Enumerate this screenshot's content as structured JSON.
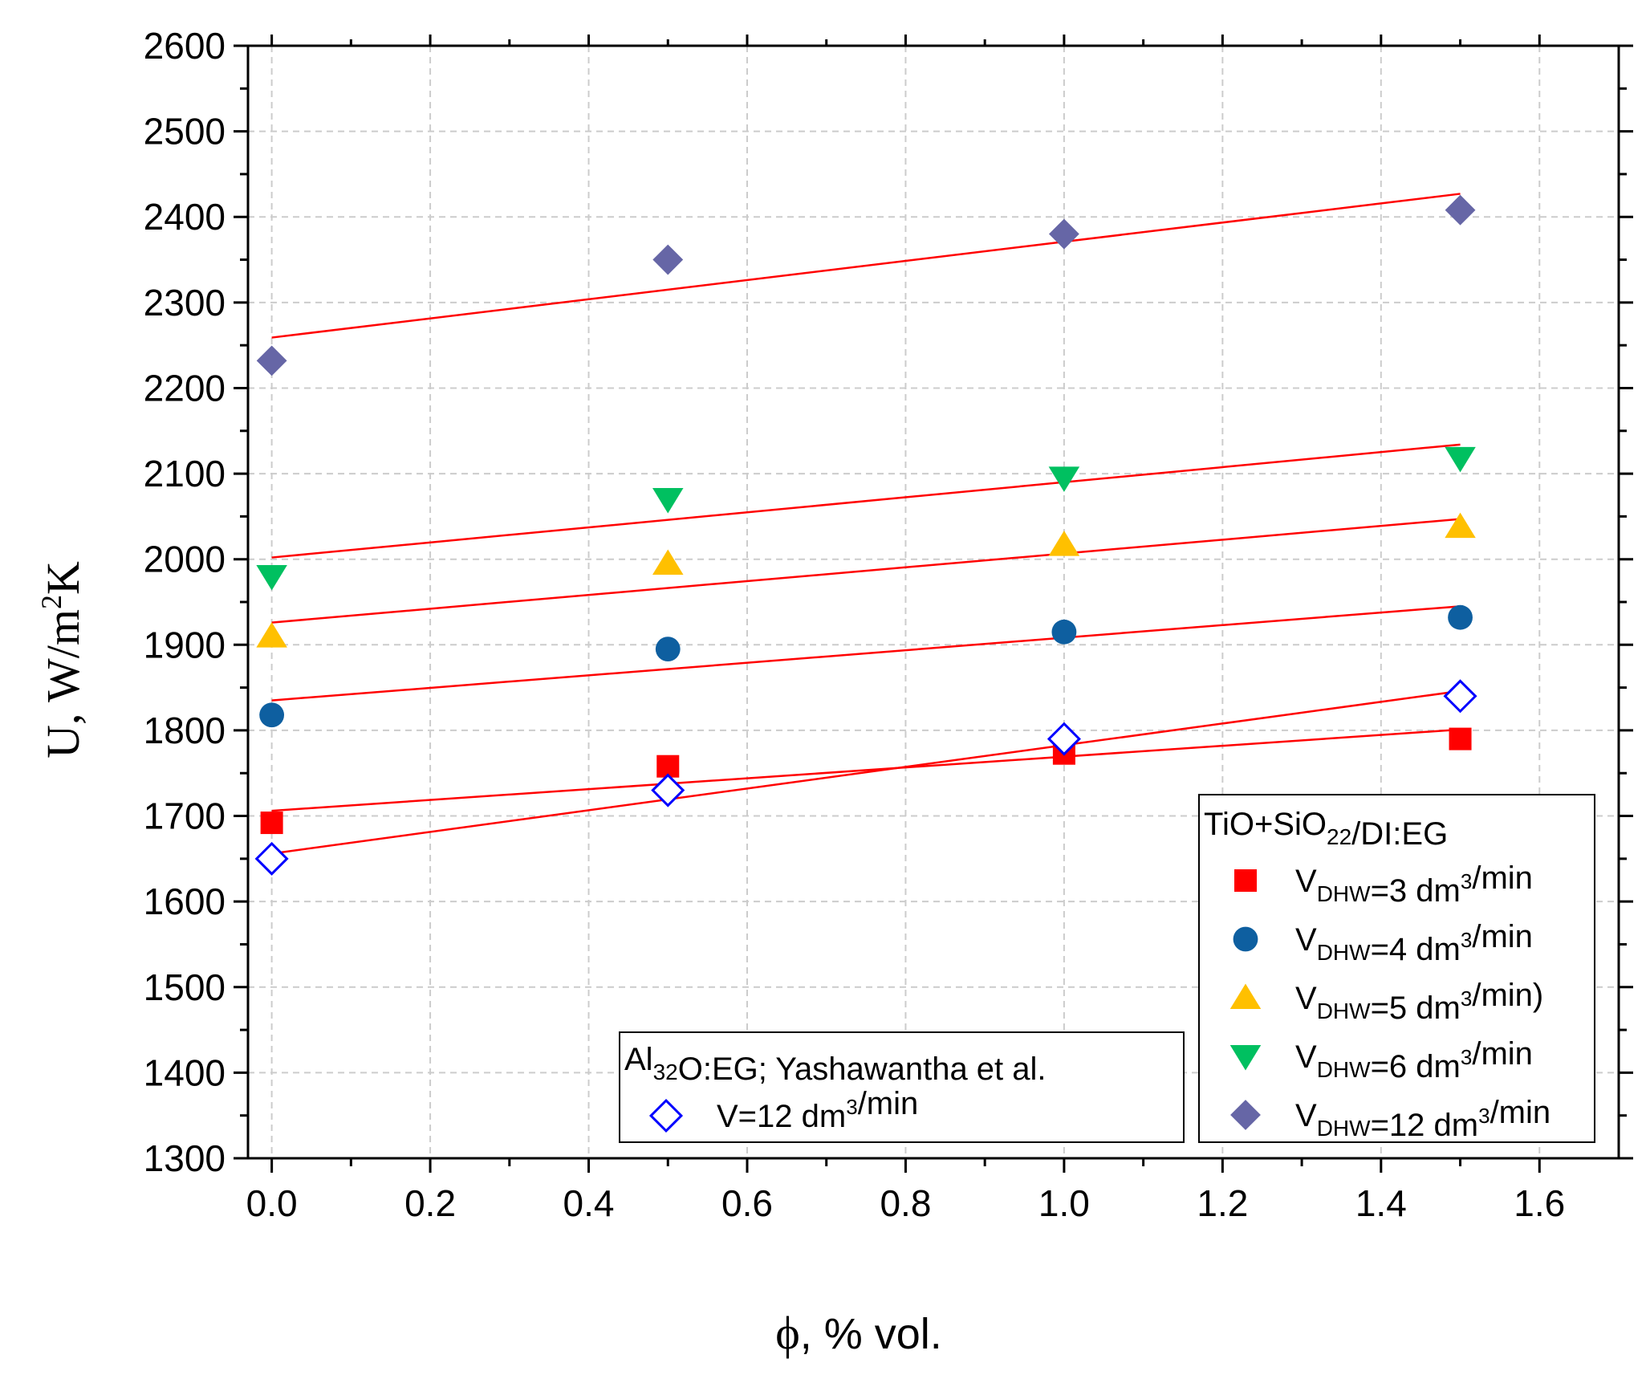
{
  "chart_data": {
    "type": "scatter",
    "xlabel_symbol": "ϕ",
    "xlabel_rest": ", % vol.",
    "ylabel": {
      "base": "U, W/m",
      "sup": "2",
      "tail": "K"
    },
    "xlim": [
      -0.03,
      1.7
    ],
    "ylim": [
      1300,
      2600
    ],
    "xticks": [
      0.0,
      0.2,
      0.4,
      0.6,
      0.8,
      1.0,
      1.2,
      1.4,
      1.6
    ],
    "xtick_labels": [
      "0.0",
      "0.2",
      "0.4",
      "0.6",
      "0.8",
      "1.0",
      "1.2",
      "1.4",
      "1.6"
    ],
    "yticks": [
      1300,
      1400,
      1500,
      1600,
      1700,
      1800,
      1900,
      2000,
      2100,
      2200,
      2300,
      2400,
      2500,
      2600
    ],
    "ytick_labels": [
      "1300",
      "1400",
      "1500",
      "1600",
      "1700",
      "1800",
      "1900",
      "2000",
      "2100",
      "2200",
      "2300",
      "2400",
      "2500",
      "2600"
    ],
    "grid": true,
    "fit_color": "#ff0000",
    "series": [
      {
        "label": "V_DHW=3 dm3/min",
        "marker": "square",
        "color": "#ff0000",
        "filled": true,
        "x": [
          0.0,
          0.5,
          1.0,
          1.5
        ],
        "y": [
          1692,
          1758,
          1773,
          1790
        ],
        "fit": [
          1706,
          1801
        ]
      },
      {
        "label": "V_DHW=4 dm3/min",
        "marker": "circle",
        "color": "#0e5fa0",
        "filled": true,
        "x": [
          0.0,
          0.5,
          1.0,
          1.5
        ],
        "y": [
          1818,
          1895,
          1915,
          1932
        ],
        "fit": [
          1835,
          1945
        ]
      },
      {
        "label": "V_DHW=5 dm3/min)",
        "marker": "triangle-up",
        "color": "#ffc000",
        "filled": true,
        "x": [
          0.0,
          0.5,
          1.0,
          1.5
        ],
        "y": [
          1910,
          1995,
          2017,
          2038
        ],
        "fit": [
          1926,
          2047
        ]
      },
      {
        "label": "V_DHW=6 dm3/min",
        "marker": "triangle-down",
        "color": "#00c060",
        "filled": true,
        "x": [
          0.0,
          0.5,
          1.0,
          1.5
        ],
        "y": [
          1980,
          2070,
          2095,
          2118
        ],
        "fit": [
          2002,
          2134
        ]
      },
      {
        "label": "V_DHW=12 dm3/min",
        "marker": "diamond",
        "color": "#6666a6",
        "filled": true,
        "x": [
          0.0,
          0.5,
          1.0,
          1.5
        ],
        "y": [
          2232,
          2350,
          2380,
          2408
        ],
        "fit": [
          2259,
          2427
        ]
      },
      {
        "label": "V=12 dm3/min",
        "marker": "diamond",
        "color": "#0000ff",
        "filled": false,
        "x": [
          0.0,
          0.5,
          1.0,
          1.5
        ],
        "y": [
          1650,
          1730,
          1790,
          1840
        ],
        "fit": [
          1656,
          1846
        ]
      }
    ],
    "legends": {
      "tio": {
        "title_parts": [
          [
            "TiO+SiO",
            "n"
          ],
          [
            "22",
            "sub"
          ],
          [
            "/DI:EG",
            "n"
          ]
        ],
        "entries": [
          {
            "series": 0,
            "parts": [
              [
                "V",
                "n"
              ],
              [
                "DHW",
                "sub"
              ],
              [
                "=3 dm",
                "n"
              ],
              [
                "3",
                "sup"
              ],
              [
                "/min",
                "n"
              ]
            ]
          },
          {
            "series": 1,
            "parts": [
              [
                "V",
                "n"
              ],
              [
                "DHW",
                "sub"
              ],
              [
                "=4 dm",
                "n"
              ],
              [
                "3",
                "sup"
              ],
              [
                "/min",
                "n"
              ]
            ]
          },
          {
            "series": 2,
            "parts": [
              [
                "V",
                "n"
              ],
              [
                "DHW",
                "sub"
              ],
              [
                "=5 dm",
                "n"
              ],
              [
                "3",
                "sup"
              ],
              [
                "/min)",
                "n"
              ]
            ]
          },
          {
            "series": 3,
            "parts": [
              [
                "V",
                "n"
              ],
              [
                "DHW",
                "sub"
              ],
              [
                "=6 dm",
                "n"
              ],
              [
                "3",
                "sup"
              ],
              [
                "/min",
                "n"
              ]
            ]
          },
          {
            "series": 4,
            "parts": [
              [
                "V",
                "n"
              ],
              [
                "DHW",
                "sub"
              ],
              [
                "=12 dm",
                "n"
              ],
              [
                "3",
                "sup"
              ],
              [
                "/min",
                "n"
              ]
            ]
          }
        ]
      },
      "al": {
        "title_parts": [
          [
            "Al",
            "n"
          ],
          [
            "32",
            "sub"
          ],
          [
            "O:EG; Yashawantha et al.",
            "n"
          ]
        ],
        "entries": [
          {
            "series": 5,
            "parts": [
              [
                "V=12 dm",
                "n"
              ],
              [
                "3",
                "sup"
              ],
              [
                "/min",
                "n"
              ]
            ]
          }
        ]
      }
    }
  }
}
